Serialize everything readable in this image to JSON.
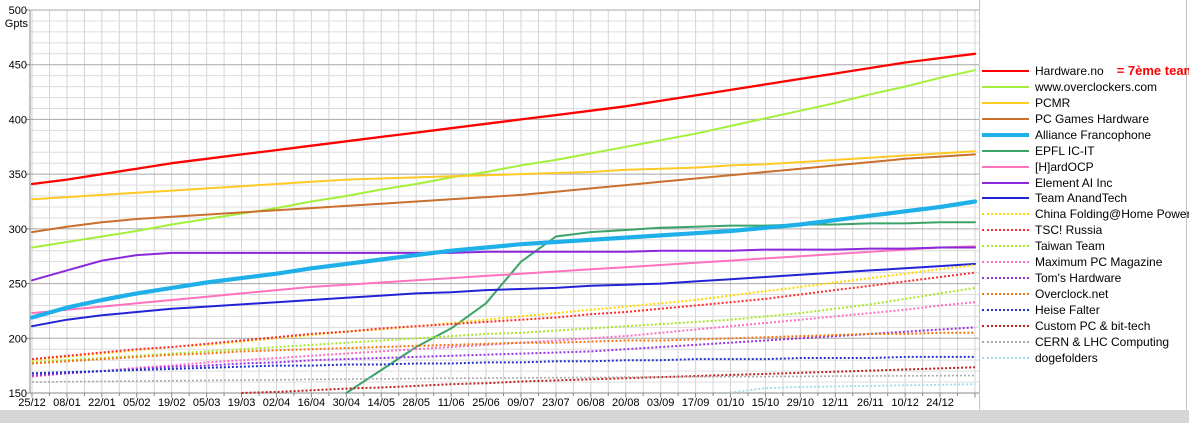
{
  "chart_data": {
    "type": "line",
    "title": "",
    "unit_label": "Gpts",
    "y_axis": {
      "min": 150,
      "max": 500,
      "major_step": 50,
      "minor_step": 10,
      "ticks": [
        500,
        450,
        400,
        350,
        300,
        250,
        200,
        150
      ]
    },
    "x_axis": {
      "labels": [
        "25/12",
        "08/01",
        "22/01",
        "05/02",
        "19/02",
        "05/03",
        "19/03",
        "02/04",
        "16/04",
        "30/04",
        "14/05",
        "28/05",
        "11/06",
        "25/06",
        "09/07",
        "23/07",
        "06/08",
        "20/08",
        "03/09",
        "17/09",
        "01/10",
        "15/10",
        "29/10",
        "12/11",
        "26/11",
        "10/12",
        "24/12"
      ],
      "note": "series extend one unlabeled 2-week interval beyond 24/12"
    },
    "annotation": {
      "text": "= 7ème team",
      "color": "#ff0000",
      "attached_to": "Hardware.no"
    },
    "grid": {
      "major_color": "#a8a8a8",
      "minor_color": "#dcdcdc",
      "vertical_color": "#d4d4d4",
      "axis_color": "#888888",
      "border_color": "#c4c4c4"
    },
    "series": [
      {
        "name": "Hardware.no",
        "color": "#ff0000",
        "style": "solid",
        "width": 2.3,
        "values": [
          341,
          345,
          350,
          355,
          360,
          364,
          368,
          372,
          376,
          380,
          384,
          388,
          392,
          396,
          400,
          404,
          408,
          412,
          417,
          422,
          427,
          432,
          437,
          442,
          447,
          452,
          456,
          460
        ]
      },
      {
        "name": "www.overclockers.com",
        "color": "#a3f03c",
        "style": "solid",
        "width": 2,
        "values": [
          283,
          288,
          293,
          298,
          304,
          309,
          314,
          319,
          325,
          330,
          336,
          341,
          347,
          352,
          358,
          363,
          369,
          375,
          381,
          387,
          394,
          401,
          408,
          415,
          423,
          430,
          438,
          445
        ]
      },
      {
        "name": "PCMR",
        "color": "#ffc926",
        "style": "solid",
        "width": 2,
        "values": [
          327,
          329,
          331,
          333,
          335,
          337,
          339,
          341,
          343,
          345,
          346,
          347,
          348,
          349,
          350,
          351,
          352,
          354,
          355,
          356,
          358,
          359,
          361,
          363,
          365,
          367,
          369,
          371
        ]
      },
      {
        "name": "PC Games Hardware",
        "color": "#c9702e",
        "style": "solid",
        "width": 2,
        "values": [
          297,
          302,
          306,
          309,
          311,
          313,
          315,
          317,
          319,
          321,
          323,
          325,
          327,
          329,
          331,
          334,
          337,
          340,
          343,
          346,
          349,
          352,
          355,
          358,
          361,
          364,
          366,
          368
        ]
      },
      {
        "name": "Alliance Francophone",
        "color": "#1fb0ea",
        "style": "solid",
        "width": 4.2,
        "values": [
          219,
          228,
          235,
          241,
          246,
          251,
          255,
          259,
          264,
          268,
          272,
          276,
          280,
          283,
          286,
          288,
          290,
          292,
          294,
          296,
          298,
          301,
          304,
          308,
          312,
          316,
          320,
          325
        ]
      },
      {
        "name": "EPFL IC-IT",
        "color": "#3ba368",
        "style": "solid",
        "width": 2,
        "values": [
          null,
          null,
          null,
          null,
          null,
          null,
          null,
          null,
          null,
          150,
          171,
          192,
          209,
          232,
          270,
          293,
          297,
          299,
          301,
          302,
          303,
          303,
          304,
          304,
          305,
          305,
          306,
          306
        ]
      },
      {
        "name": "[H]ardOCP",
        "color": "#ff72be",
        "style": "solid",
        "width": 2,
        "values": [
          223,
          226,
          229,
          232,
          235,
          238,
          241,
          244,
          247,
          249,
          251,
          253,
          255,
          257,
          259,
          261,
          263,
          265,
          267,
          269,
          271,
          273,
          275,
          277,
          279,
          281,
          283,
          284
        ]
      },
      {
        "name": "Element AI Inc",
        "color": "#8a29db",
        "style": "solid",
        "width": 2,
        "values": [
          253,
          262,
          271,
          276,
          278,
          278,
          278,
          278,
          278,
          278,
          278,
          278,
          278,
          279,
          279,
          279,
          279,
          279,
          280,
          280,
          280,
          281,
          281,
          281,
          282,
          282,
          283,
          283
        ]
      },
      {
        "name": "Team AnandTech",
        "color": "#2323d6",
        "style": "solid",
        "width": 2,
        "values": [
          211,
          217,
          221,
          224,
          227,
          229,
          231,
          233,
          235,
          237,
          239,
          241,
          242,
          244,
          245,
          246,
          248,
          249,
          250,
          252,
          254,
          256,
          258,
          260,
          262,
          264,
          266,
          268
        ]
      },
      {
        "name": "China Folding@Home Power",
        "color": "#ffd800",
        "style": "dotted",
        "width": 2,
        "values": [
          180,
          183,
          186,
          189,
          192,
          194,
          197,
          200,
          203,
          206,
          208,
          211,
          214,
          217,
          220,
          223,
          226,
          229,
          232,
          235,
          239,
          243,
          247,
          251,
          255,
          259,
          263,
          267
        ]
      },
      {
        "name": "TSC! Russia",
        "color": "#ff2a2a",
        "style": "dotted",
        "width": 2,
        "values": [
          181,
          184,
          187,
          190,
          192,
          195,
          198,
          201,
          204,
          206,
          209,
          211,
          213,
          215,
          217,
          219,
          222,
          224,
          227,
          230,
          233,
          236,
          240,
          244,
          248,
          252,
          256,
          260
        ]
      },
      {
        "name": "Taiwan Team",
        "color": "#a8e82a",
        "style": "dotted",
        "width": 2,
        "values": [
          178,
          180,
          182,
          184,
          186,
          188,
          190,
          192,
          194,
          196,
          198,
          200,
          202,
          204,
          205,
          207,
          209,
          211,
          213,
          215,
          217,
          220,
          223,
          227,
          231,
          236,
          241,
          246
        ]
      },
      {
        "name": "Maximum PC Magazine",
        "color": "#ff6ec7",
        "style": "dotted",
        "width": 2,
        "values": [
          165,
          168,
          170,
          173,
          175,
          178,
          180,
          182,
          184,
          186,
          188,
          190,
          192,
          194,
          196,
          198,
          200,
          202,
          205,
          208,
          211,
          214,
          217,
          220,
          223,
          226,
          230,
          233
        ]
      },
      {
        "name": "Tom's Hardware",
        "color": "#9933dd",
        "style": "dotted",
        "width": 2,
        "values": [
          166,
          168,
          170,
          172,
          174,
          175,
          177,
          178,
          180,
          181,
          182,
          183,
          184,
          185,
          186,
          187,
          188,
          190,
          192,
          194,
          196,
          198,
          200,
          202,
          204,
          206,
          208,
          210
        ]
      },
      {
        "name": "Overclock.net",
        "color": "#ee7711",
        "style": "dotted",
        "width": 2,
        "values": [
          177,
          179,
          181,
          183,
          185,
          186,
          188,
          189,
          190,
          191,
          192,
          193,
          194,
          195,
          196,
          196,
          197,
          198,
          198,
          199,
          200,
          201,
          202,
          203,
          204,
          204,
          205,
          205
        ]
      },
      {
        "name": "Heise Falter",
        "color": "#2233cc",
        "style": "dotted",
        "width": 2,
        "values": [
          168,
          169,
          170,
          171,
          172,
          173,
          174,
          175,
          175,
          176,
          176,
          177,
          177,
          178,
          178,
          179,
          179,
          180,
          180,
          181,
          181,
          181,
          182,
          182,
          182,
          183,
          183,
          183
        ]
      },
      {
        "name": "Custom PC & bit-tech",
        "color": "#bb2222",
        "style": "dotted",
        "width": 2,
        "values": [
          null,
          null,
          null,
          null,
          null,
          null,
          150,
          151,
          152.5,
          154,
          155,
          156.5,
          158,
          159,
          160.5,
          161.5,
          162.5,
          163.5,
          164.5,
          165.5,
          166.5,
          167.5,
          168.5,
          169.5,
          170.5,
          171.5,
          172.5,
          173.5
        ]
      },
      {
        "name": "CERN & LHC Computing",
        "color": "#ababab",
        "style": "dotted",
        "width": 1.6,
        "values": [
          160,
          160.3,
          160.6,
          160.9,
          161.2,
          161.5,
          161.8,
          162.1,
          162.4,
          162.7,
          163,
          163.2,
          163.4,
          163.6,
          163.8,
          164,
          164.2,
          164.4,
          164.6,
          164.8,
          165,
          165.1,
          165.2,
          165.4,
          165.5,
          165.7,
          165.8,
          166
        ]
      },
      {
        "name": "dogefolders",
        "color": "#9fd9ee",
        "style": "dotted",
        "width": 1.8,
        "values": [
          null,
          null,
          null,
          null,
          null,
          null,
          null,
          null,
          null,
          null,
          null,
          null,
          null,
          null,
          null,
          null,
          null,
          null,
          null,
          null,
          150.5,
          154.5,
          155.5,
          156,
          156.5,
          157,
          157.5,
          158
        ]
      }
    ]
  }
}
